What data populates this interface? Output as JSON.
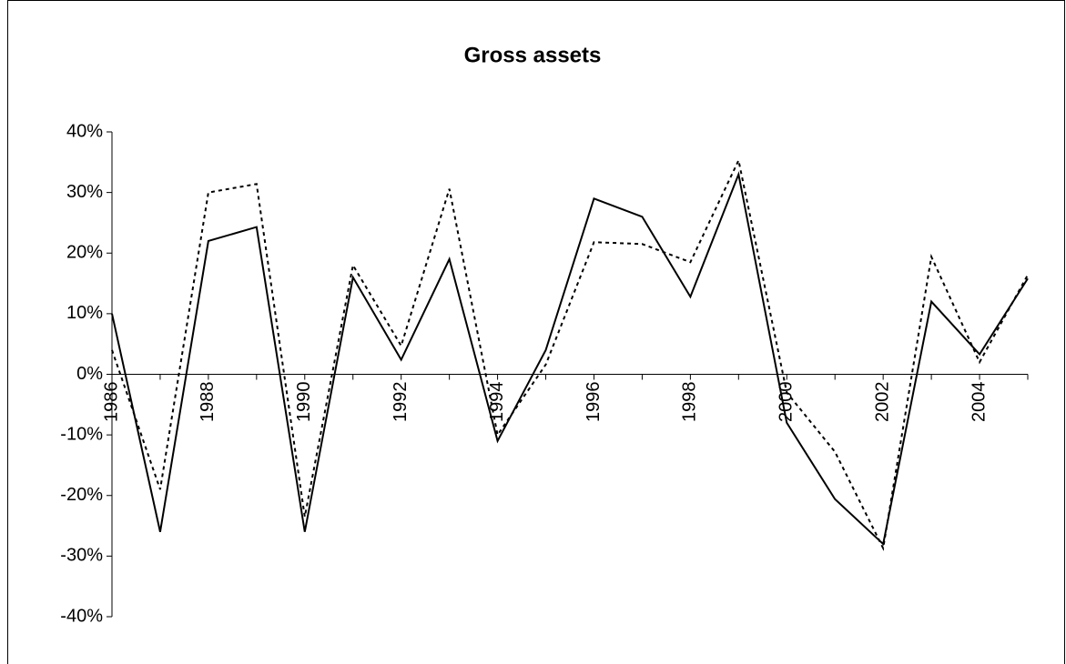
{
  "chart_data": {
    "type": "line",
    "title": "Gross assets",
    "categories": [
      "1986",
      null,
      "1988",
      null,
      "1990",
      null,
      "1992",
      null,
      "1994",
      null,
      "1996",
      null,
      "1998",
      null,
      "2000",
      null,
      "2002",
      null,
      "2004",
      null
    ],
    "series": [
      {
        "color": "#000000",
        "dash": "solid",
        "values": [
          10,
          -26,
          22,
          24.3,
          -26,
          16,
          2.4,
          19,
          -11,
          4,
          29,
          26,
          12.8,
          33,
          -8,
          -20.6,
          -28,
          12,
          3.3,
          15.8
        ]
      },
      {
        "color": "#000000",
        "dash": "dotted",
        "values": [
          4,
          -19,
          30,
          31.4,
          -23.5,
          18,
          4.7,
          30.6,
          -10,
          1.6,
          21.8,
          21.5,
          18.5,
          35.3,
          -3,
          -12.8,
          -28.7,
          19.4,
          2,
          16.4
        ]
      }
    ],
    "ylim": [
      -40,
      40
    ],
    "yticks": [
      {
        "value": -40,
        "label": "-40%"
      },
      {
        "value": -30,
        "label": "-30%"
      },
      {
        "value": -20,
        "label": "-20%"
      },
      {
        "value": -10,
        "label": "-10%"
      },
      {
        "value": 0,
        "label": "0%"
      },
      {
        "value": 10,
        "label": "10%"
      },
      {
        "value": 20,
        "label": "20%"
      },
      {
        "value": 30,
        "label": "30%"
      },
      {
        "value": 40,
        "label": "40%"
      }
    ],
    "grid": false
  }
}
